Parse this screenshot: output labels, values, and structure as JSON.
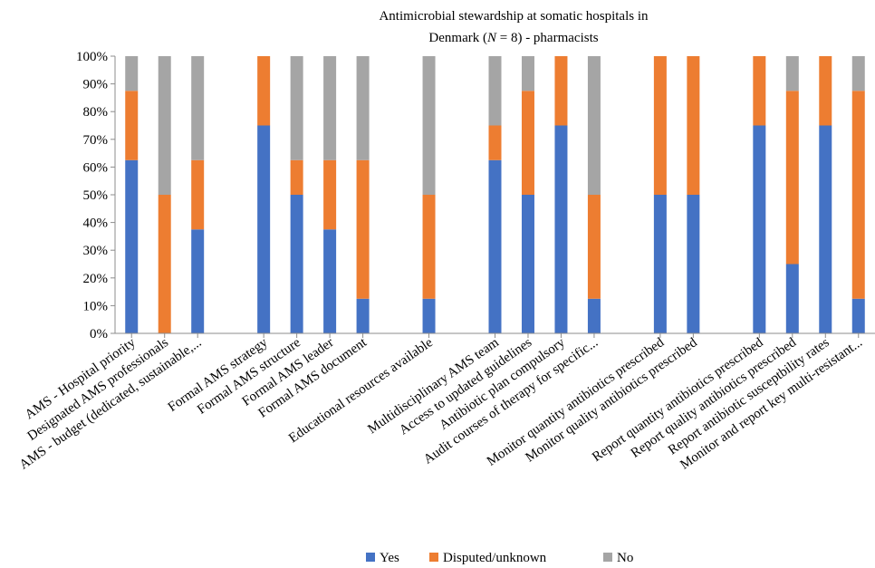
{
  "chart_data": {
    "type": "bar",
    "stacked": true,
    "title_line1": "Antimicrobial stewardship at somatic hospitals in",
    "title_line2_pre": "Denmark (",
    "title_line2_italic": "N",
    "title_line2_post": " = 8) - pharmacists",
    "y_ticks": [
      "0%",
      "10%",
      "20%",
      "30%",
      "40%",
      "50%",
      "60%",
      "70%",
      "80%",
      "90%",
      "100%"
    ],
    "ylim": [
      0,
      100
    ],
    "grid": false,
    "legend_position": "bottom",
    "categories": [
      "AMS - Hospital priority",
      "Designated AMS professionals",
      "AMS - budget (dedicated, sustainable,...",
      "",
      "Formal AMS strategy",
      "Formal AMS structure",
      "Formal AMS leader",
      "Formal AMS document",
      "",
      "Educational resources available",
      "",
      "Multidisciplinary AMS team",
      "Access to updated guidelines",
      "Antibiotic plan compulsory",
      "Audit courses of therapy for specific...",
      "",
      "Monitor quantity antibiotics prescribed",
      "Monitor quality antibiotics prescribed",
      "",
      "Report quantity antibiotics prescribed",
      "Report quality antibiotics prescribed",
      "Report antibiotic susceptbility rates",
      "Monitor and report key multi-resistant..."
    ],
    "series": [
      {
        "name": "Yes",
        "color": "#4472C4",
        "values": [
          62.5,
          0,
          37.5,
          0,
          75,
          50,
          37.5,
          12.5,
          0,
          12.5,
          0,
          62.5,
          50,
          75,
          12.5,
          0,
          50,
          50,
          0,
          75,
          25,
          75,
          12.5
        ]
      },
      {
        "name": "Disputed/unknown",
        "color": "#ED7D31",
        "values": [
          25,
          50,
          25,
          0,
          25,
          12.5,
          25,
          50,
          0,
          37.5,
          0,
          12.5,
          37.5,
          25,
          37.5,
          0,
          50,
          50,
          0,
          25,
          62.5,
          25,
          75
        ]
      },
      {
        "name": "No",
        "color": "#A5A5A5",
        "values": [
          12.5,
          50,
          37.5,
          0,
          0,
          37.5,
          37.5,
          37.5,
          0,
          50,
          0,
          25,
          12.5,
          0,
          50,
          0,
          0,
          0,
          0,
          0,
          12.5,
          0,
          12.5
        ]
      }
    ]
  }
}
